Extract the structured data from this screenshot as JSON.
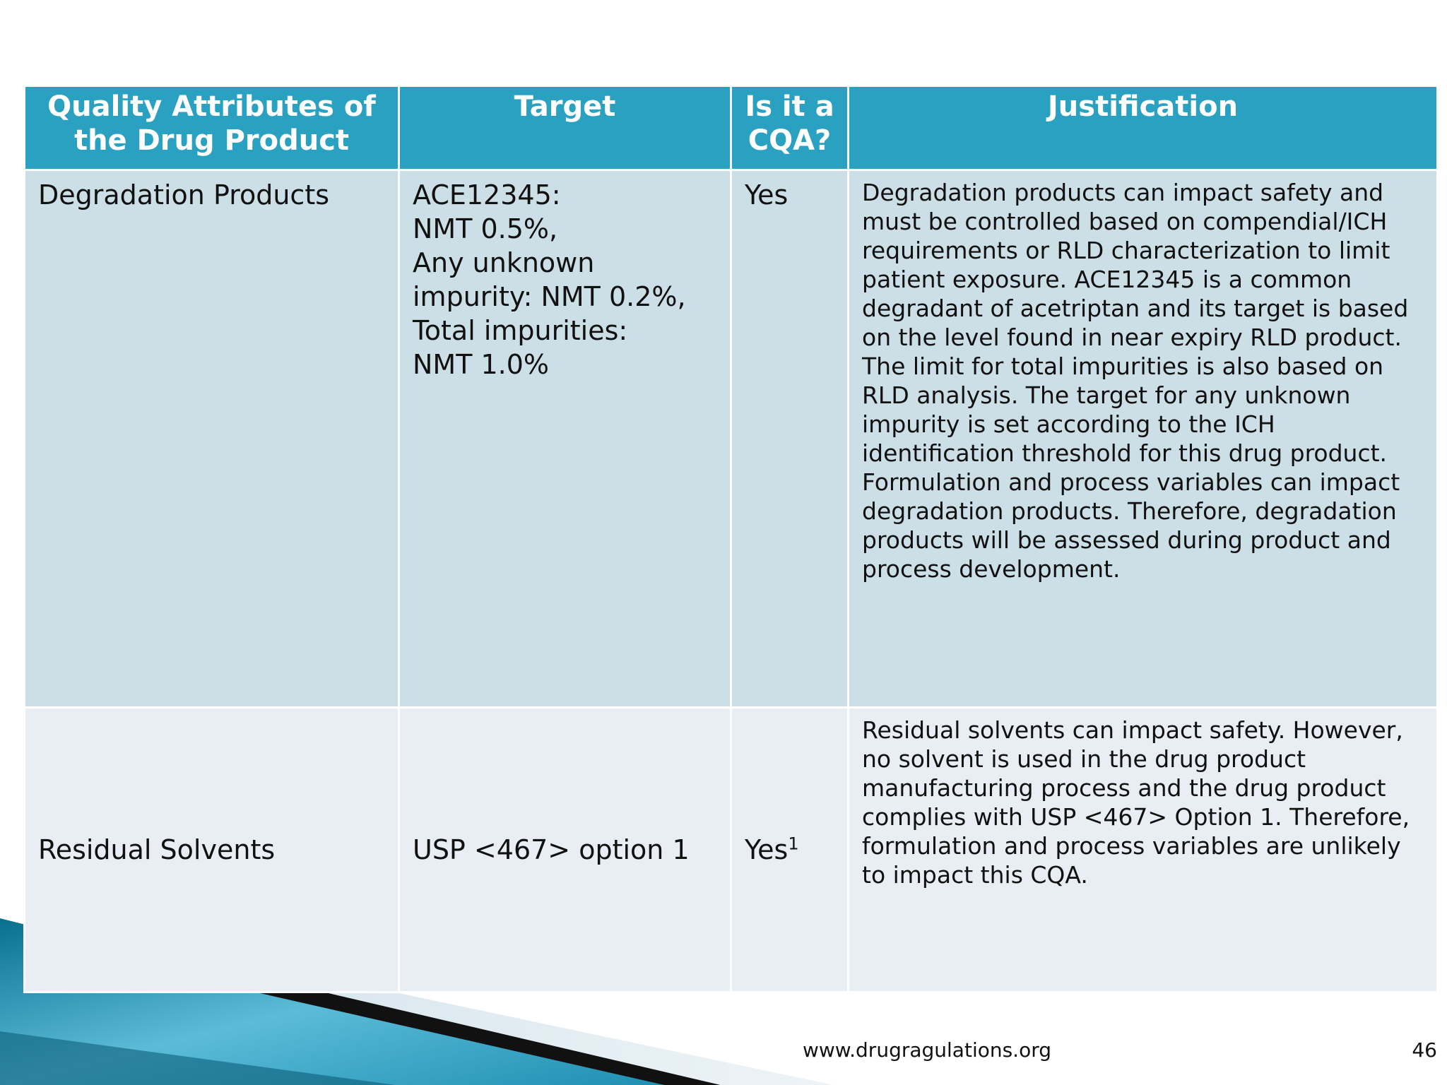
{
  "table": {
    "headers": [
      "Quality Attributes of the Drug Product",
      "Target",
      "Is it a CQA?",
      "Justification"
    ],
    "rows": [
      {
        "attribute": "Degradation Products",
        "target_lines": [
          "ACE12345:",
          "NMT 0.5%,",
          "Any unknown",
          "impurity: NMT 0.2%,",
          "Total impurities:",
          "NMT 1.0%"
        ],
        "cqa": "Yes",
        "cqa_note": "",
        "justification": "Degradation products can impact safety and must be controlled based on compendial/ICH requirements or RLD characterization to limit patient exposure. ACE12345 is a common degradant of acetriptan and its target is based on the level found in near expiry RLD product. The limit for total impurities is also based on RLD analysis. The target for any unknown impurity is set according to the ICH identification threshold for this drug product. Formulation and process variables can impact degradation products. Therefore, degradation products will be assessed during product and process development."
      },
      {
        "attribute": "Residual Solvents",
        "target_lines": [
          "USP <467> option 1"
        ],
        "cqa": "Yes",
        "cqa_note": "1",
        "justification": "Residual solvents can impact safety. However, no solvent is used in the drug product manufacturing process and the drug product complies with USP <467> Option 1. Therefore, formulation and process variables are unlikely to impact this CQA."
      }
    ]
  },
  "footer": {
    "url": "www.drugragulations.org",
    "page": "46"
  },
  "colors": {
    "header_bg": "#2aa1c0",
    "row1_bg": "#cddfe6",
    "row2_bg": "#e8eef3",
    "accent_dark": "#0a6f8f"
  }
}
